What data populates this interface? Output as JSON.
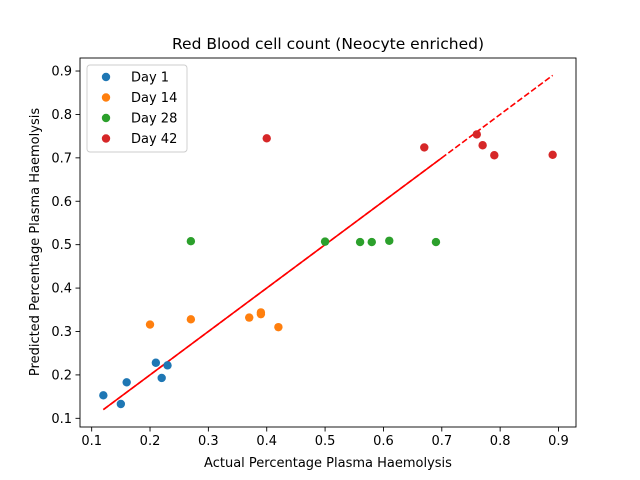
{
  "chart_data": {
    "type": "scatter",
    "title": "Red Blood cell count (Neocyte enriched)",
    "xlabel": "Actual Percentage Plasma Haemolysis",
    "ylabel": "Predicted Percentage Plasma Haemolysis",
    "xlim": [
      0.08,
      0.93
    ],
    "ylim": [
      0.08,
      0.93
    ],
    "xticks": [
      "0.1",
      "0.2",
      "0.3",
      "0.4",
      "0.5",
      "0.6",
      "0.7",
      "0.8",
      "0.9"
    ],
    "yticks": [
      "0.1",
      "0.2",
      "0.3",
      "0.4",
      "0.5",
      "0.6",
      "0.7",
      "0.8",
      "0.9"
    ],
    "grid": false,
    "legend_position": "top-left",
    "series": [
      {
        "name": "Day 1",
        "color": "#1f77b4",
        "points": [
          [
            0.12,
            0.153
          ],
          [
            0.15,
            0.133
          ],
          [
            0.16,
            0.183
          ],
          [
            0.21,
            0.228
          ],
          [
            0.22,
            0.193
          ],
          [
            0.23,
            0.222
          ]
        ]
      },
      {
        "name": "Day 14",
        "color": "#ff7f0e",
        "points": [
          [
            0.2,
            0.316
          ],
          [
            0.27,
            0.328
          ],
          [
            0.37,
            0.332
          ],
          [
            0.39,
            0.344
          ],
          [
            0.39,
            0.34
          ],
          [
            0.42,
            0.31
          ]
        ]
      },
      {
        "name": "Day 28",
        "color": "#2ca02c",
        "points": [
          [
            0.27,
            0.508
          ],
          [
            0.5,
            0.507
          ],
          [
            0.56,
            0.506
          ],
          [
            0.58,
            0.506
          ],
          [
            0.61,
            0.509
          ],
          [
            0.69,
            0.506
          ]
        ]
      },
      {
        "name": "Day 42",
        "color": "#d62728",
        "points": [
          [
            0.4,
            0.745
          ],
          [
            0.67,
            0.724
          ],
          [
            0.76,
            0.754
          ],
          [
            0.77,
            0.729
          ],
          [
            0.79,
            0.706
          ],
          [
            0.89,
            0.707
          ]
        ]
      }
    ],
    "fit_line": {
      "color": "#ff0000",
      "start": [
        0.12,
        0.12
      ],
      "end": [
        0.89,
        0.89
      ],
      "solid_until": 0.7,
      "style": "dashed"
    }
  }
}
